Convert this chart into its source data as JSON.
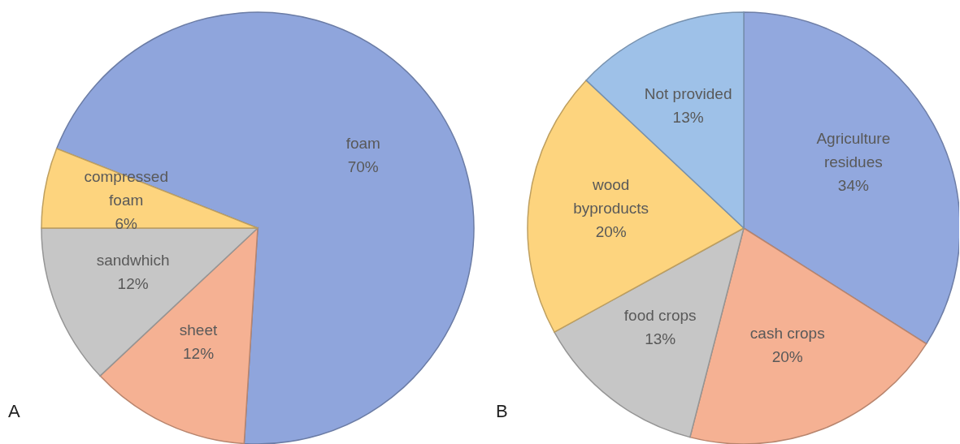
{
  "chart_data": [
    {
      "type": "pie",
      "categories": [
        "foam",
        "sheet",
        "sandwhich",
        "compressed foam"
      ],
      "values": [
        70,
        12,
        12,
        6
      ],
      "value_labels": [
        "70%",
        "12%",
        "12%",
        "6%"
      ],
      "colors": [
        "#8fa5dc",
        "#f5b193",
        "#c6c6c6",
        "#fdd47e"
      ],
      "annotations": [
        "A"
      ]
    },
    {
      "type": "pie",
      "categories": [
        "Agriculture residues",
        "cash crops",
        "food crops",
        "wood byproducts",
        "Not provided"
      ],
      "values": [
        34,
        20,
        13,
        20,
        13
      ],
      "value_labels": [
        "34%",
        "20%",
        "13%",
        "20%",
        "13%"
      ],
      "colors": [
        "#92a8de",
        "#f5b193",
        "#c6c6c6",
        "#fdd47e",
        "#9ec1e8"
      ],
      "annotations": [
        "B"
      ]
    }
  ]
}
